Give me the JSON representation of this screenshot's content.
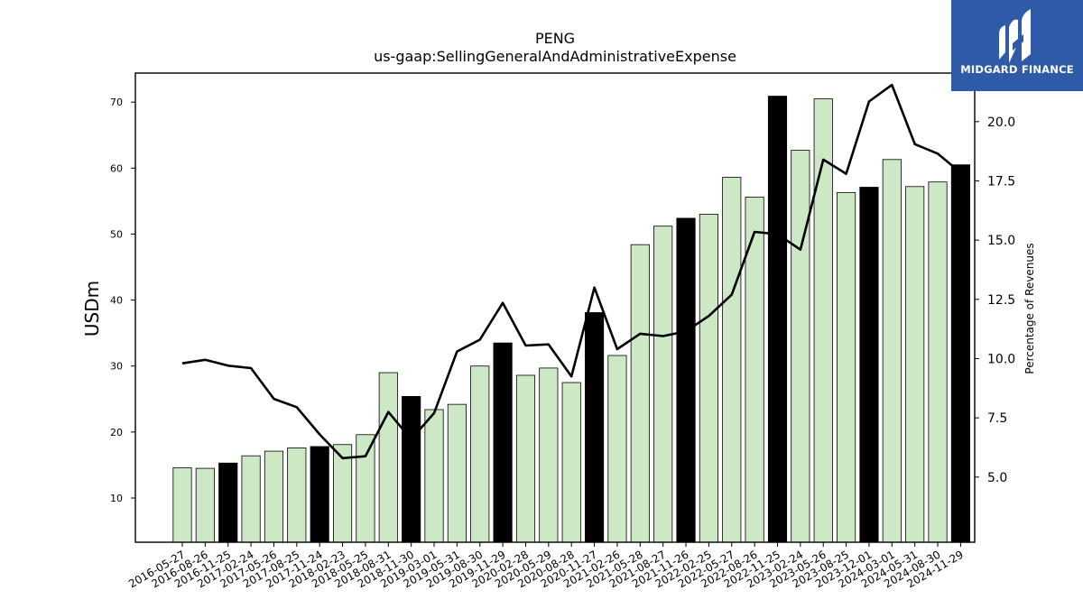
{
  "brand": {
    "name": "MIDGARD FINANCE",
    "icon": "midgard-logo-icon",
    "color": "#2f5aa8"
  },
  "chart_data": {
    "type": "bar",
    "title": "PENG",
    "subtitle": "us-gaap:SellingGeneralAndAdministrativeExpense",
    "ylabel": "USDm",
    "y2label": "Percentage of Revenues",
    "ylim": [
      3.3,
      74.4
    ],
    "y2lim": [
      2.25,
      22.05
    ],
    "yticks": [
      10,
      20,
      30,
      40,
      50,
      60,
      70
    ],
    "y2ticks": [
      "5.0",
      "7.5",
      "10.0",
      "12.5",
      "15.0",
      "17.5",
      "20.0"
    ],
    "grid": false,
    "colors": {
      "bar": "#cde8c5",
      "highlight": "#000000",
      "line": "#000000"
    },
    "categories": [
      "2016-05-27",
      "2016-08-26",
      "2016-11-25",
      "2017-02-24",
      "2017-05-26",
      "2017-08-25",
      "2017-11-24",
      "2018-02-23",
      "2018-05-25",
      "2018-08-31",
      "2018-11-30",
      "2019-03-01",
      "2019-05-31",
      "2019-08-30",
      "2019-11-29",
      "2020-02-28",
      "2020-05-29",
      "2020-08-28",
      "2020-11-27",
      "2021-02-26",
      "2021-05-28",
      "2021-08-27",
      "2021-11-26",
      "2022-02-25",
      "2022-05-27",
      "2022-08-26",
      "2022-11-25",
      "2023-02-24",
      "2023-05-26",
      "2023-08-25",
      "2023-12-01",
      "2024-03-01",
      "2024-05-31",
      "2024-08-30",
      "2024-11-29"
    ],
    "series": [
      {
        "type": "bar",
        "values": [
          14.6,
          14.5,
          15.3,
          16.4,
          17.1,
          17.6,
          17.8,
          18.1,
          19.6,
          29.0,
          25.4,
          23.4,
          24.2,
          30.0,
          33.5,
          28.6,
          29.7,
          27.5,
          38.1,
          31.6,
          48.4,
          51.2,
          52.4,
          53.0,
          58.6,
          55.6,
          70.9,
          62.7,
          70.5,
          56.3,
          57.1,
          61.3,
          57.2,
          57.9,
          60.5
        ],
        "highlight": [
          false,
          false,
          true,
          false,
          false,
          false,
          true,
          false,
          false,
          false,
          true,
          false,
          false,
          false,
          true,
          false,
          false,
          false,
          true,
          false,
          false,
          false,
          true,
          false,
          false,
          false,
          true,
          false,
          false,
          false,
          true,
          false,
          false,
          false,
          true
        ]
      },
      {
        "type": "line",
        "axis": "right",
        "values": [
          9.8,
          9.95,
          9.7,
          9.6,
          8.3,
          7.95,
          6.8,
          5.8,
          5.88,
          7.75,
          6.6,
          7.7,
          10.3,
          10.8,
          12.35,
          10.55,
          10.6,
          9.25,
          13.0,
          10.4,
          11.05,
          10.95,
          11.15,
          11.8,
          12.7,
          15.35,
          15.25,
          14.6,
          18.4,
          17.8,
          20.85,
          21.55,
          19.05,
          18.65,
          17.85
        ]
      }
    ]
  }
}
